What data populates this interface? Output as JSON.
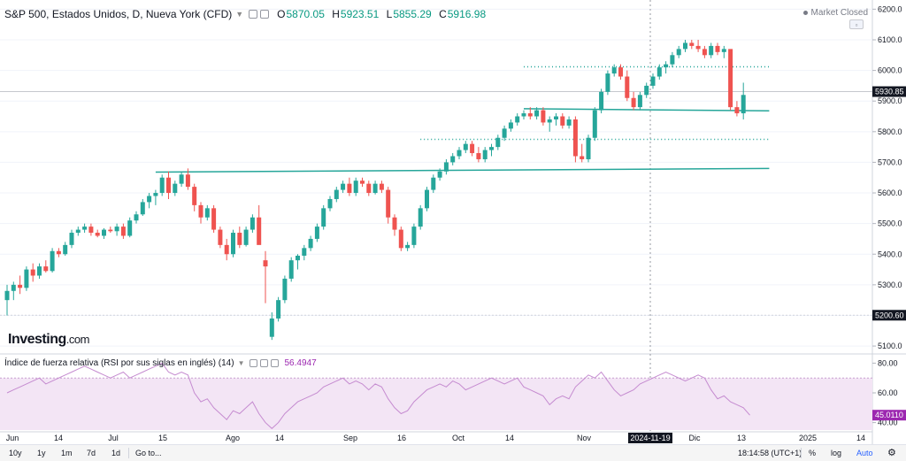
{
  "header": {
    "symbol": "S&P 500, Estados Unidos, D, Nueva York (CFD)",
    "open_label": "O",
    "open": "5870.05",
    "high_label": "H",
    "high": "5923.51",
    "low_label": "L",
    "low": "5855.29",
    "close_label": "C",
    "close": "5916.98"
  },
  "status": {
    "market": "Market Closed"
  },
  "logo": {
    "main": "Investing",
    "suffix": ".com"
  },
  "rsi_header": {
    "title": "Índice de fuerza relativa (RSI por sus siglas en inglés) (14)",
    "value": "56.4947"
  },
  "toolbar": {
    "ranges": [
      "10y",
      "1y",
      "1m",
      "7d",
      "1d"
    ],
    "goto": "Go to...",
    "time": "18:14:58 (UTC+1)",
    "percent": "%",
    "log": "log",
    "auto": "Auto"
  },
  "chart_data": [
    {
      "type": "candlestick",
      "title": "S&P 500, Estados Unidos, D, Nueva York (CFD)",
      "ylim": [
        5080,
        6230
      ],
      "y_ticks": [
        5100,
        5200,
        5300,
        5400,
        5500,
        5600,
        5700,
        5800,
        5900,
        6000,
        6100,
        6200
      ],
      "price_tags": [
        {
          "value": 5930.85,
          "label": "5930.85",
          "color": "#131722"
        },
        {
          "value": 5200.6,
          "label": "5200.60",
          "color": "#131722"
        }
      ],
      "crosshair_x_label": "2024-11-19",
      "x_labels": [
        "Jun",
        "14",
        "Jul",
        "15",
        "Ago",
        "14",
        "Sep",
        "16",
        "Oct",
        "14",
        "Nov",
        "2024-11-19",
        "Dic",
        "13",
        "2025",
        "14"
      ],
      "series_ohlc": [
        [
          5250,
          5300,
          5200,
          5280
        ],
        [
          5280,
          5310,
          5250,
          5300
        ],
        [
          5300,
          5330,
          5270,
          5290
        ],
        [
          5290,
          5360,
          5280,
          5350
        ],
        [
          5350,
          5370,
          5310,
          5330
        ],
        [
          5330,
          5370,
          5320,
          5360
        ],
        [
          5360,
          5380,
          5340,
          5345
        ],
        [
          5345,
          5420,
          5340,
          5410
        ],
        [
          5410,
          5420,
          5390,
          5400
        ],
        [
          5400,
          5440,
          5395,
          5430
        ],
        [
          5430,
          5480,
          5420,
          5470
        ],
        [
          5470,
          5490,
          5460,
          5480
        ],
        [
          5480,
          5500,
          5470,
          5490
        ],
        [
          5490,
          5500,
          5460,
          5470
        ],
        [
          5470,
          5480,
          5455,
          5460
        ],
        [
          5460,
          5485,
          5450,
          5480
        ],
        [
          5480,
          5490,
          5470,
          5475
        ],
        [
          5475,
          5500,
          5460,
          5490
        ],
        [
          5490,
          5500,
          5450,
          5460
        ],
        [
          5460,
          5520,
          5455,
          5510
        ],
        [
          5510,
          5540,
          5500,
          5530
        ],
        [
          5530,
          5580,
          5525,
          5570
        ],
        [
          5570,
          5600,
          5550,
          5590
        ],
        [
          5590,
          5610,
          5560,
          5600
        ],
        [
          5600,
          5660,
          5590,
          5650
        ],
        [
          5650,
          5670,
          5580,
          5600
        ],
        [
          5600,
          5640,
          5590,
          5630
        ],
        [
          5630,
          5670,
          5620,
          5660
        ],
        [
          5660,
          5680,
          5610,
          5620
        ],
        [
          5620,
          5630,
          5540,
          5560
        ],
        [
          5560,
          5570,
          5500,
          5520
        ],
        [
          5520,
          5560,
          5510,
          5550
        ],
        [
          5550,
          5560,
          5470,
          5480
        ],
        [
          5480,
          5490,
          5420,
          5430
        ],
        [
          5430,
          5450,
          5380,
          5400
        ],
        [
          5400,
          5480,
          5390,
          5470
        ],
        [
          5470,
          5490,
          5420,
          5430
        ],
        [
          5430,
          5490,
          5425,
          5480
        ],
        [
          5480,
          5530,
          5470,
          5520
        ],
        [
          5520,
          5560,
          5500,
          5430
        ],
        [
          5380,
          5410,
          5240,
          5360
        ],
        [
          5130,
          5210,
          5120,
          5190
        ],
        [
          5190,
          5260,
          5180,
          5250
        ],
        [
          5250,
          5330,
          5240,
          5320
        ],
        [
          5320,
          5390,
          5310,
          5380
        ],
        [
          5380,
          5400,
          5350,
          5395
        ],
        [
          5395,
          5430,
          5380,
          5420
        ],
        [
          5420,
          5460,
          5410,
          5450
        ],
        [
          5450,
          5500,
          5440,
          5490
        ],
        [
          5490,
          5560,
          5480,
          5550
        ],
        [
          5550,
          5590,
          5540,
          5580
        ],
        [
          5580,
          5620,
          5570,
          5610
        ],
        [
          5610,
          5640,
          5600,
          5630
        ],
        [
          5630,
          5650,
          5590,
          5600
        ],
        [
          5600,
          5650,
          5590,
          5640
        ],
        [
          5640,
          5650,
          5620,
          5630
        ],
        [
          5630,
          5640,
          5590,
          5600
        ],
        [
          5600,
          5640,
          5595,
          5630
        ],
        [
          5630,
          5640,
          5600,
          5610
        ],
        [
          5610,
          5620,
          5500,
          5520
        ],
        [
          5520,
          5530,
          5460,
          5480
        ],
        [
          5480,
          5490,
          5410,
          5420
        ],
        [
          5420,
          5440,
          5410,
          5430
        ],
        [
          5430,
          5500,
          5420,
          5490
        ],
        [
          5490,
          5560,
          5480,
          5550
        ],
        [
          5550,
          5620,
          5540,
          5610
        ],
        [
          5610,
          5660,
          5600,
          5650
        ],
        [
          5650,
          5680,
          5640,
          5670
        ],
        [
          5670,
          5710,
          5660,
          5700
        ],
        [
          5700,
          5730,
          5690,
          5720
        ],
        [
          5720,
          5750,
          5710,
          5740
        ],
        [
          5740,
          5770,
          5730,
          5760
        ],
        [
          5760,
          5770,
          5720,
          5730
        ],
        [
          5730,
          5750,
          5700,
          5710
        ],
        [
          5710,
          5750,
          5700,
          5740
        ],
        [
          5740,
          5760,
          5720,
          5750
        ],
        [
          5750,
          5790,
          5740,
          5780
        ],
        [
          5780,
          5820,
          5770,
          5810
        ],
        [
          5810,
          5840,
          5800,
          5830
        ],
        [
          5830,
          5860,
          5820,
          5850
        ],
        [
          5850,
          5870,
          5840,
          5860
        ],
        [
          5860,
          5880,
          5840,
          5850
        ],
        [
          5850,
          5880,
          5840,
          5870
        ],
        [
          5870,
          5880,
          5820,
          5830
        ],
        [
          5830,
          5850,
          5800,
          5840
        ],
        [
          5840,
          5860,
          5820,
          5850
        ],
        [
          5850,
          5860,
          5810,
          5820
        ],
        [
          5820,
          5850,
          5810,
          5840
        ],
        [
          5840,
          5850,
          5700,
          5720
        ],
        [
          5720,
          5760,
          5700,
          5710
        ],
        [
          5710,
          5790,
          5700,
          5780
        ],
        [
          5780,
          5880,
          5770,
          5870
        ],
        [
          5870,
          5940,
          5860,
          5930
        ],
        [
          5930,
          6000,
          5920,
          5990
        ],
        [
          5990,
          6020,
          5980,
          6010
        ],
        [
          6010,
          6020,
          5970,
          5980
        ],
        [
          5980,
          6000,
          5900,
          5910
        ],
        [
          5910,
          5930,
          5870,
          5880
        ],
        [
          5880,
          5930,
          5870,
          5920
        ],
        [
          5920,
          5960,
          5910,
          5950
        ],
        [
          5950,
          5990,
          5940,
          5980
        ],
        [
          5980,
          6020,
          5970,
          6010
        ],
        [
          6010,
          6030,
          5990,
          6020
        ],
        [
          6020,
          6060,
          6010,
          6050
        ],
        [
          6050,
          6080,
          6040,
          6070
        ],
        [
          6070,
          6100,
          6060,
          6090
        ],
        [
          6090,
          6100,
          6070,
          6080
        ],
        [
          6080,
          6100,
          6060,
          6070
        ],
        [
          6070,
          6080,
          6040,
          6050
        ],
        [
          6050,
          6090,
          6040,
          6080
        ],
        [
          6080,
          6090,
          6050,
          6060
        ],
        [
          6060,
          6080,
          6040,
          6070
        ],
        [
          6070,
          6050,
          5870,
          5880
        ],
        [
          5880,
          5900,
          5850,
          5860
        ],
        [
          5860,
          5960,
          5840,
          5920
        ]
      ],
      "trendlines": [
        {
          "kind": "solid",
          "color": "#26a69a",
          "x_start_index": 23,
          "x_end_index": 118,
          "y_start": 5668,
          "y_end": 5680
        },
        {
          "kind": "solid",
          "color": "#26a69a",
          "x_start_index": 80,
          "x_end_index": 118,
          "y_start": 5875,
          "y_end": 5868
        },
        {
          "kind": "dotted",
          "color": "#26a69a",
          "x_start_index": 64,
          "x_end_index": 118,
          "y": 5775
        },
        {
          "kind": "dotted",
          "color": "#26a69a",
          "x_start_index": 80,
          "x_end_index": 118,
          "y": 6012
        }
      ],
      "grid": true,
      "up_color": "#26a69a",
      "down_color": "#ef5350"
    },
    {
      "type": "line",
      "title": "Índice de fuerza relativa (RSI por sus siglas en inglés) (14)",
      "ylim": [
        35,
        85
      ],
      "y_ticks": [
        40,
        60,
        80
      ],
      "band": [
        30,
        70
      ],
      "last_value_label": "45.0110",
      "series": [
        {
          "values": [
            60,
            62,
            64,
            66,
            68,
            70,
            66,
            68,
            70,
            72,
            74,
            76,
            78,
            76,
            74,
            72,
            70,
            72,
            74,
            70,
            72,
            74,
            76,
            78,
            80,
            74,
            72,
            74,
            72,
            60,
            54,
            56,
            50,
            46,
            42,
            48,
            46,
            50,
            54,
            46,
            40,
            36,
            40,
            46,
            50,
            54,
            56,
            58,
            60,
            64,
            66,
            68,
            70,
            66,
            68,
            66,
            62,
            66,
            64,
            56,
            50,
            46,
            48,
            54,
            58,
            62,
            64,
            66,
            64,
            68,
            66,
            62,
            64,
            66,
            68,
            70,
            68,
            66,
            68,
            70,
            64,
            62,
            60,
            58,
            52,
            56,
            58,
            56,
            64,
            68,
            72,
            70,
            74,
            68,
            62,
            58,
            60,
            62,
            66,
            68,
            70,
            72,
            74,
            72,
            70,
            68,
            70,
            72,
            70,
            62,
            56,
            58,
            54,
            52,
            50,
            45
          ]
        }
      ],
      "color": "#9c27b0"
    }
  ]
}
